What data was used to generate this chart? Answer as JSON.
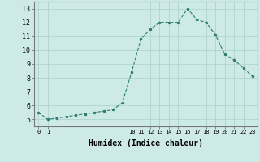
{
  "x": [
    0,
    1,
    2,
    3,
    4,
    5,
    6,
    7,
    8,
    9,
    10,
    11,
    12,
    13,
    14,
    15,
    16,
    17,
    18,
    19,
    20,
    21,
    22,
    23
  ],
  "y": [
    5.5,
    5.0,
    5.1,
    5.2,
    5.3,
    5.4,
    5.5,
    5.6,
    5.7,
    6.2,
    8.4,
    10.8,
    11.5,
    12.0,
    12.0,
    12.0,
    13.0,
    12.2,
    12.0,
    11.1,
    9.7,
    9.3,
    8.7,
    8.1
  ],
  "line_color": "#2e7d72",
  "marker_color": "#2e7d72",
  "bg_color": "#ceeae7",
  "grid_color": "#aed4d0",
  "xlabel": "Humidex (Indice chaleur)",
  "xlabel_fontsize": 7,
  "ylabel_ticks": [
    5,
    6,
    7,
    8,
    9,
    10,
    11,
    12,
    13
  ],
  "xlim": [
    -0.5,
    23.5
  ],
  "ylim": [
    4.5,
    13.5
  ],
  "xticks": [
    0,
    1,
    10,
    11,
    12,
    13,
    14,
    15,
    16,
    17,
    18,
    19,
    20,
    21,
    22,
    23
  ]
}
